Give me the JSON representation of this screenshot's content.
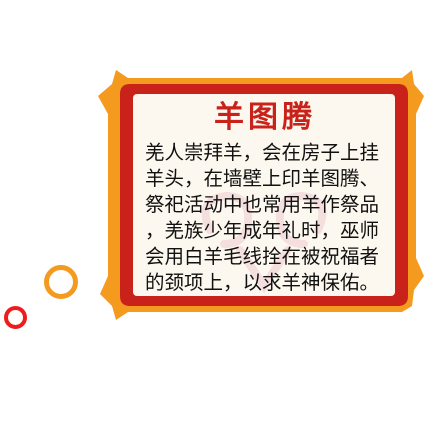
{
  "card": {
    "title": "羊图腾",
    "lines": [
      "羌人崇拜羊，会在房子上挂",
      "羊头，在墙壁上印羊图腾、",
      "祭祀活动中也常用羊作祭品",
      "，羌族少年成年礼时，巫师",
      "会用白羊毛线拴在被祝福者",
      "的颈项上，以求羊神保佑。"
    ]
  },
  "colors": {
    "frame_red": "#c9221a",
    "frame_orange": "#f39a1f",
    "panel_cream": "#fdf8ef",
    "bubble_red": "#f01b1b"
  }
}
